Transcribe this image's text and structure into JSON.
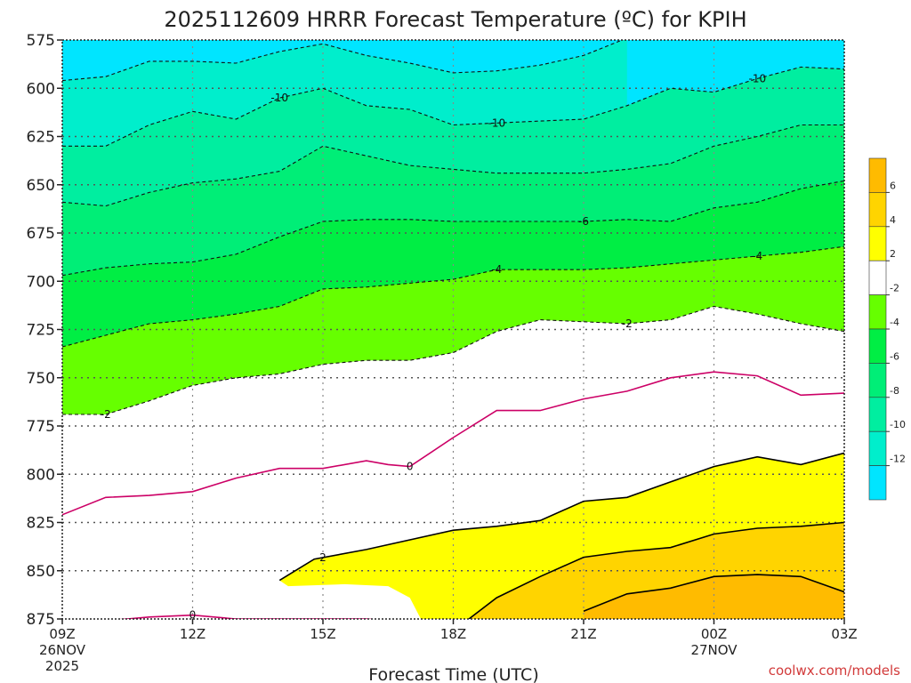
{
  "header": {
    "title": "2025112609 HRRR Forecast Temperature (ºC) for KPIH"
  },
  "footer": {
    "xlabel": "Forecast Time (UTC)",
    "credit": "coolwx.com/models"
  },
  "chart_data": {
    "type": "heatmap",
    "title": "2025112609 HRRR Forecast Temperature (ºC) for KPIH",
    "xlabel": "Forecast Time (UTC)",
    "ylabel": "",
    "y_axis": {
      "scale": "pressure (hPa), inverted",
      "range": [
        875,
        575
      ],
      "ticks": [
        575,
        600,
        625,
        650,
        675,
        700,
        725,
        750,
        775,
        800,
        825,
        850,
        875
      ]
    },
    "x_axis": {
      "range_hours": [
        0,
        18
      ],
      "ticks": [
        {
          "hour": 0,
          "label": "09Z",
          "date": "26NOV",
          "year": "2025"
        },
        {
          "hour": 3,
          "label": "12Z"
        },
        {
          "hour": 6,
          "label": "15Z"
        },
        {
          "hour": 9,
          "label": "18Z"
        },
        {
          "hour": 12,
          "label": "21Z"
        },
        {
          "hour": 15,
          "label": "00Z",
          "date": "27NOV"
        },
        {
          "hour": 18,
          "label": "03Z"
        }
      ]
    },
    "grid": true,
    "legend": "right colorbar",
    "colorbar": {
      "bins": [
        {
          "from": 6,
          "to": 8,
          "color": "#ffbb00"
        },
        {
          "from": 4,
          "to": 6,
          "color": "#ffd400"
        },
        {
          "from": 2,
          "to": 4,
          "color": "#ffff00"
        },
        {
          "from": -2,
          "to": 2,
          "color": "#ffffff"
        },
        {
          "from": -4,
          "to": -2,
          "color": "#66ff00"
        },
        {
          "from": -6,
          "to": -4,
          "color": "#00ee44"
        },
        {
          "from": -8,
          "to": -6,
          "color": "#00ee77"
        },
        {
          "from": -10,
          "to": -8,
          "color": "#00eea0"
        },
        {
          "from": -12,
          "to": -10,
          "color": "#00eecc"
        },
        {
          "from": -14,
          "to": -12,
          "color": "#00e5ff"
        }
      ],
      "labels": [
        "6",
        "4",
        "2",
        "-2",
        "-4",
        "-6",
        "-8",
        "-10",
        "-12"
      ]
    },
    "contours": [
      {
        "value": -12,
        "style": "dashed",
        "points": [
          [
            0,
            596
          ],
          [
            1,
            594
          ],
          [
            2,
            586
          ],
          [
            3,
            586
          ],
          [
            4,
            587
          ],
          [
            5,
            581
          ],
          [
            6,
            577
          ],
          [
            7,
            583
          ],
          [
            8,
            587
          ],
          [
            9,
            592
          ],
          [
            10,
            591
          ],
          [
            11,
            588
          ],
          [
            12,
            583
          ],
          [
            13,
            574
          ]
        ]
      },
      {
        "value": -10,
        "style": "dashed",
        "label": "-10",
        "points": [
          [
            0,
            630
          ],
          [
            1,
            630
          ],
          [
            2,
            619
          ],
          [
            3,
            612
          ],
          [
            4,
            616
          ],
          [
            5,
            605
          ],
          [
            6,
            600
          ],
          [
            7,
            609
          ],
          [
            8,
            611
          ],
          [
            9,
            619
          ],
          [
            10,
            618
          ],
          [
            11,
            617
          ],
          [
            12,
            616
          ],
          [
            13,
            609
          ],
          [
            14,
            600
          ],
          [
            15,
            602
          ],
          [
            16,
            595
          ],
          [
            17,
            589
          ],
          [
            18,
            590
          ]
        ]
      },
      {
        "value": -8,
        "style": "dashed",
        "points": [
          [
            0,
            659
          ],
          [
            1,
            661
          ],
          [
            2,
            654
          ],
          [
            3,
            649
          ],
          [
            4,
            647
          ],
          [
            5,
            643
          ],
          [
            6,
            630
          ],
          [
            7,
            635
          ],
          [
            8,
            640
          ],
          [
            9,
            642
          ],
          [
            10,
            644
          ],
          [
            11,
            644
          ],
          [
            12,
            644
          ],
          [
            13,
            642
          ],
          [
            14,
            639
          ],
          [
            15,
            630
          ],
          [
            16,
            625
          ],
          [
            17,
            619
          ],
          [
            18,
            619
          ]
        ]
      },
      {
        "value": -6,
        "style": "dashed",
        "label": "-6",
        "points": [
          [
            0,
            697
          ],
          [
            1,
            693
          ],
          [
            2,
            691
          ],
          [
            3,
            690
          ],
          [
            4,
            686
          ],
          [
            5,
            677
          ],
          [
            6,
            669
          ],
          [
            7,
            668
          ],
          [
            8,
            668
          ],
          [
            9,
            669
          ],
          [
            10,
            669
          ],
          [
            11,
            669
          ],
          [
            12,
            669
          ],
          [
            13,
            668
          ],
          [
            14,
            669
          ],
          [
            15,
            662
          ],
          [
            16,
            659
          ],
          [
            17,
            652
          ],
          [
            18,
            648
          ]
        ]
      },
      {
        "value": -4,
        "style": "dashed",
        "label": "-4",
        "points": [
          [
            0,
            734
          ],
          [
            1,
            728
          ],
          [
            2,
            722
          ],
          [
            3,
            720
          ],
          [
            4,
            717
          ],
          [
            5,
            713
          ],
          [
            6,
            704
          ],
          [
            7,
            703
          ],
          [
            8,
            701
          ],
          [
            9,
            699
          ],
          [
            10,
            694
          ],
          [
            11,
            694
          ],
          [
            12,
            694
          ],
          [
            13,
            693
          ],
          [
            14,
            691
          ],
          [
            15,
            689
          ],
          [
            16,
            687
          ],
          [
            17,
            685
          ],
          [
            18,
            682
          ]
        ]
      },
      {
        "value": -2,
        "style": "dashed",
        "label": "-2",
        "points": [
          [
            0,
            769
          ],
          [
            1,
            769
          ],
          [
            2,
            762
          ],
          [
            3,
            754
          ],
          [
            4,
            750
          ],
          [
            5,
            748
          ],
          [
            6,
            743
          ],
          [
            7,
            741
          ],
          [
            8,
            741
          ],
          [
            9,
            737
          ],
          [
            10,
            726
          ],
          [
            11,
            720
          ],
          [
            12,
            721
          ],
          [
            13,
            722
          ],
          [
            14,
            720
          ],
          [
            15,
            713
          ],
          [
            16,
            717
          ],
          [
            17,
            722
          ],
          [
            18,
            726
          ]
        ]
      },
      {
        "value": 0,
        "style": "solid",
        "color": "#cc0066",
        "label": "0",
        "points": [
          [
            0,
            821
          ],
          [
            1,
            812
          ],
          [
            2,
            811
          ],
          [
            3,
            809
          ],
          [
            4,
            802
          ],
          [
            5,
            797
          ],
          [
            6,
            797
          ],
          [
            7,
            793
          ],
          [
            7.5,
            795
          ],
          [
            8,
            796
          ],
          [
            9,
            781
          ],
          [
            10,
            767
          ],
          [
            11,
            767
          ],
          [
            12,
            761
          ],
          [
            13,
            757
          ],
          [
            14,
            750
          ],
          [
            15,
            747
          ],
          [
            16,
            749
          ],
          [
            17,
            759
          ],
          [
            18,
            758
          ]
        ]
      },
      {
        "value": 0,
        "style": "solid",
        "color": "#cc0066",
        "label": "0",
        "points": [
          [
            0,
            876
          ],
          [
            1,
            876
          ],
          [
            2,
            874
          ],
          [
            3,
            873
          ],
          [
            4,
            875
          ],
          [
            5,
            875
          ],
          [
            6,
            875
          ],
          [
            7,
            875
          ],
          [
            7.5,
            876
          ],
          [
            8,
            878
          ]
        ]
      },
      {
        "value": 2,
        "style": "solid",
        "color": "#000000",
        "label": "2",
        "points": [
          [
            5.0,
            855
          ],
          [
            5.8,
            844
          ],
          [
            7,
            839
          ],
          [
            9,
            829
          ],
          [
            10,
            827
          ],
          [
            11,
            824
          ],
          [
            12,
            814
          ],
          [
            13,
            812
          ],
          [
            14,
            804
          ],
          [
            15,
            796
          ],
          [
            16,
            791
          ],
          [
            17,
            795
          ],
          [
            18,
            789
          ]
        ]
      },
      {
        "value": 4,
        "style": "solid",
        "color": "#000000",
        "points": [
          [
            9.3,
            876
          ],
          [
            10,
            864
          ],
          [
            11,
            853
          ],
          [
            12,
            843
          ],
          [
            13,
            840
          ],
          [
            14,
            838
          ],
          [
            15,
            831
          ],
          [
            16,
            828
          ],
          [
            17,
            827
          ],
          [
            18,
            825
          ]
        ]
      },
      {
        "value": 6,
        "style": "solid",
        "color": "#000000",
        "points": [
          [
            12,
            871
          ],
          [
            13,
            862
          ],
          [
            14,
            859
          ],
          [
            15,
            853
          ],
          [
            16,
            852
          ],
          [
            17,
            853
          ],
          [
            18,
            861
          ]
        ]
      }
    ]
  }
}
